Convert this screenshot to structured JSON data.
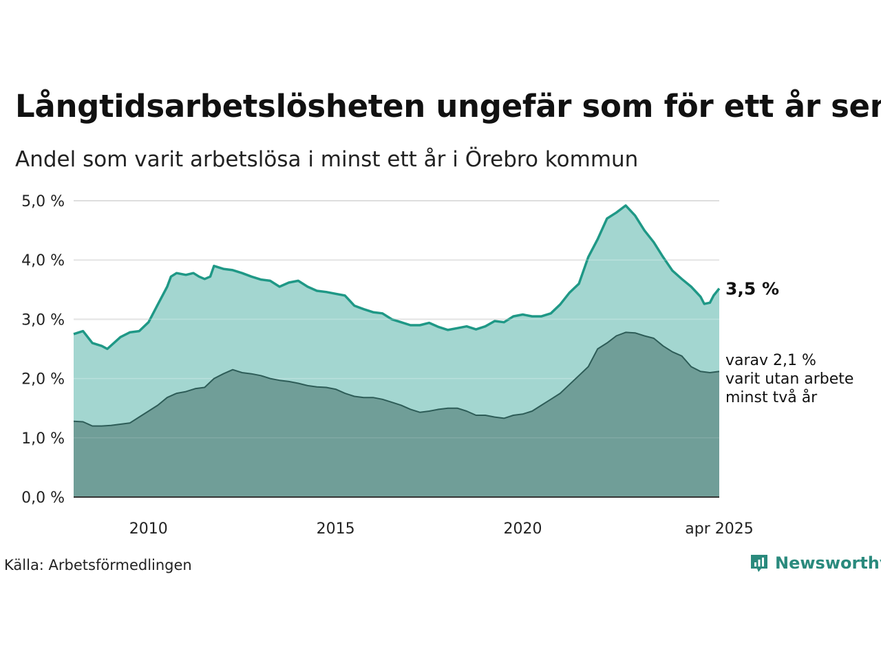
{
  "title": "Långtidsarbetslösheten ungefär som för ett år sen",
  "subtitle": "Andel som varit arbetslösa i minst ett år i Örebro kommun",
  "source": "Källa: Arbetsförmedlingen",
  "brand": "Newsworthy",
  "colors": {
    "line_total": "#1f9886",
    "fill_total": "#a3d6d0",
    "line_long": "#2d5c57",
    "fill_long": "#709e98",
    "grid": "#dddddd",
    "brand": "#2a8a7d"
  },
  "chart_data": {
    "type": "area",
    "x_ticks": [
      {
        "label": "2010",
        "x": 2010.0
      },
      {
        "label": "2015",
        "x": 2015.0
      },
      {
        "label": "2020",
        "x": 2020.0
      },
      {
        "label": "apr 2025",
        "x": 2025.25
      }
    ],
    "y_ticks": [
      "0,0 %",
      "1,0 %",
      "2,0 %",
      "3,0 %",
      "4,0 %",
      "5,0 %"
    ],
    "ylim": [
      0,
      5
    ],
    "xlim": [
      2008.0,
      2025.25
    ],
    "grid": true,
    "end_label_total": "3,5 %",
    "end_label_long": [
      "varav 2,1 %",
      "varit utan arbete",
      "minst två år"
    ],
    "series": [
      {
        "key": "total",
        "values": [
          [
            2008.0,
            2.75
          ],
          [
            2008.25,
            2.8
          ],
          [
            2008.5,
            2.6
          ],
          [
            2008.75,
            2.55
          ],
          [
            2008.9,
            2.5
          ],
          [
            2009.25,
            2.7
          ],
          [
            2009.5,
            2.78
          ],
          [
            2009.75,
            2.8
          ],
          [
            2010.0,
            2.95
          ],
          [
            2010.25,
            3.25
          ],
          [
            2010.5,
            3.55
          ],
          [
            2010.6,
            3.72
          ],
          [
            2010.75,
            3.78
          ],
          [
            2011.0,
            3.75
          ],
          [
            2011.2,
            3.78
          ],
          [
            2011.35,
            3.72
          ],
          [
            2011.5,
            3.68
          ],
          [
            2011.65,
            3.72
          ],
          [
            2011.75,
            3.9
          ],
          [
            2012.0,
            3.85
          ],
          [
            2012.25,
            3.83
          ],
          [
            2012.5,
            3.78
          ],
          [
            2012.75,
            3.72
          ],
          [
            2013.0,
            3.67
          ],
          [
            2013.25,
            3.65
          ],
          [
            2013.5,
            3.55
          ],
          [
            2013.75,
            3.62
          ],
          [
            2014.0,
            3.65
          ],
          [
            2014.25,
            3.55
          ],
          [
            2014.5,
            3.48
          ],
          [
            2014.75,
            3.46
          ],
          [
            2015.0,
            3.43
          ],
          [
            2015.25,
            3.4
          ],
          [
            2015.5,
            3.23
          ],
          [
            2015.75,
            3.17
          ],
          [
            2016.0,
            3.12
          ],
          [
            2016.25,
            3.1
          ],
          [
            2016.5,
            3.0
          ],
          [
            2016.75,
            2.95
          ],
          [
            2017.0,
            2.9
          ],
          [
            2017.25,
            2.9
          ],
          [
            2017.5,
            2.94
          ],
          [
            2017.75,
            2.87
          ],
          [
            2018.0,
            2.82
          ],
          [
            2018.25,
            2.85
          ],
          [
            2018.5,
            2.88
          ],
          [
            2018.75,
            2.83
          ],
          [
            2019.0,
            2.88
          ],
          [
            2019.25,
            2.97
          ],
          [
            2019.5,
            2.95
          ],
          [
            2019.75,
            3.05
          ],
          [
            2020.0,
            3.08
          ],
          [
            2020.25,
            3.05
          ],
          [
            2020.5,
            3.05
          ],
          [
            2020.75,
            3.1
          ],
          [
            2021.0,
            3.25
          ],
          [
            2021.25,
            3.45
          ],
          [
            2021.5,
            3.6
          ],
          [
            2021.75,
            4.05
          ],
          [
            2022.0,
            4.35
          ],
          [
            2022.25,
            4.7
          ],
          [
            2022.5,
            4.8
          ],
          [
            2022.75,
            4.92
          ],
          [
            2023.0,
            4.75
          ],
          [
            2023.25,
            4.5
          ],
          [
            2023.5,
            4.3
          ],
          [
            2023.75,
            4.05
          ],
          [
            2024.0,
            3.82
          ],
          [
            2024.25,
            3.68
          ],
          [
            2024.5,
            3.55
          ],
          [
            2024.75,
            3.38
          ],
          [
            2024.85,
            3.26
          ],
          [
            2025.0,
            3.28
          ],
          [
            2025.1,
            3.4
          ],
          [
            2025.25,
            3.52
          ]
        ]
      },
      {
        "key": "long",
        "values": [
          [
            2008.0,
            1.28
          ],
          [
            2008.25,
            1.27
          ],
          [
            2008.5,
            1.2
          ],
          [
            2008.75,
            1.2
          ],
          [
            2009.0,
            1.21
          ],
          [
            2009.25,
            1.23
          ],
          [
            2009.5,
            1.25
          ],
          [
            2009.75,
            1.35
          ],
          [
            2010.0,
            1.45
          ],
          [
            2010.25,
            1.55
          ],
          [
            2010.5,
            1.68
          ],
          [
            2010.75,
            1.75
          ],
          [
            2011.0,
            1.78
          ],
          [
            2011.25,
            1.83
          ],
          [
            2011.5,
            1.85
          ],
          [
            2011.75,
            2.0
          ],
          [
            2012.0,
            2.08
          ],
          [
            2012.25,
            2.15
          ],
          [
            2012.5,
            2.1
          ],
          [
            2012.75,
            2.08
          ],
          [
            2013.0,
            2.05
          ],
          [
            2013.25,
            2.0
          ],
          [
            2013.5,
            1.97
          ],
          [
            2013.75,
            1.95
          ],
          [
            2014.0,
            1.92
          ],
          [
            2014.25,
            1.88
          ],
          [
            2014.5,
            1.86
          ],
          [
            2014.75,
            1.85
          ],
          [
            2015.0,
            1.82
          ],
          [
            2015.25,
            1.75
          ],
          [
            2015.5,
            1.7
          ],
          [
            2015.75,
            1.68
          ],
          [
            2016.0,
            1.68
          ],
          [
            2016.25,
            1.65
          ],
          [
            2016.5,
            1.6
          ],
          [
            2016.75,
            1.55
          ],
          [
            2017.0,
            1.48
          ],
          [
            2017.25,
            1.43
          ],
          [
            2017.5,
            1.45
          ],
          [
            2017.75,
            1.48
          ],
          [
            2018.0,
            1.5
          ],
          [
            2018.25,
            1.5
          ],
          [
            2018.5,
            1.45
          ],
          [
            2018.75,
            1.38
          ],
          [
            2019.0,
            1.38
          ],
          [
            2019.25,
            1.35
          ],
          [
            2019.5,
            1.33
          ],
          [
            2019.75,
            1.38
          ],
          [
            2020.0,
            1.4
          ],
          [
            2020.25,
            1.45
          ],
          [
            2020.5,
            1.55
          ],
          [
            2020.75,
            1.65
          ],
          [
            2021.0,
            1.75
          ],
          [
            2021.25,
            1.9
          ],
          [
            2021.5,
            2.05
          ],
          [
            2021.75,
            2.2
          ],
          [
            2022.0,
            2.5
          ],
          [
            2022.25,
            2.6
          ],
          [
            2022.5,
            2.72
          ],
          [
            2022.75,
            2.78
          ],
          [
            2023.0,
            2.77
          ],
          [
            2023.25,
            2.72
          ],
          [
            2023.5,
            2.68
          ],
          [
            2023.75,
            2.55
          ],
          [
            2024.0,
            2.45
          ],
          [
            2024.25,
            2.38
          ],
          [
            2024.5,
            2.2
          ],
          [
            2024.75,
            2.12
          ],
          [
            2025.0,
            2.1
          ],
          [
            2025.25,
            2.12
          ]
        ]
      }
    ]
  }
}
